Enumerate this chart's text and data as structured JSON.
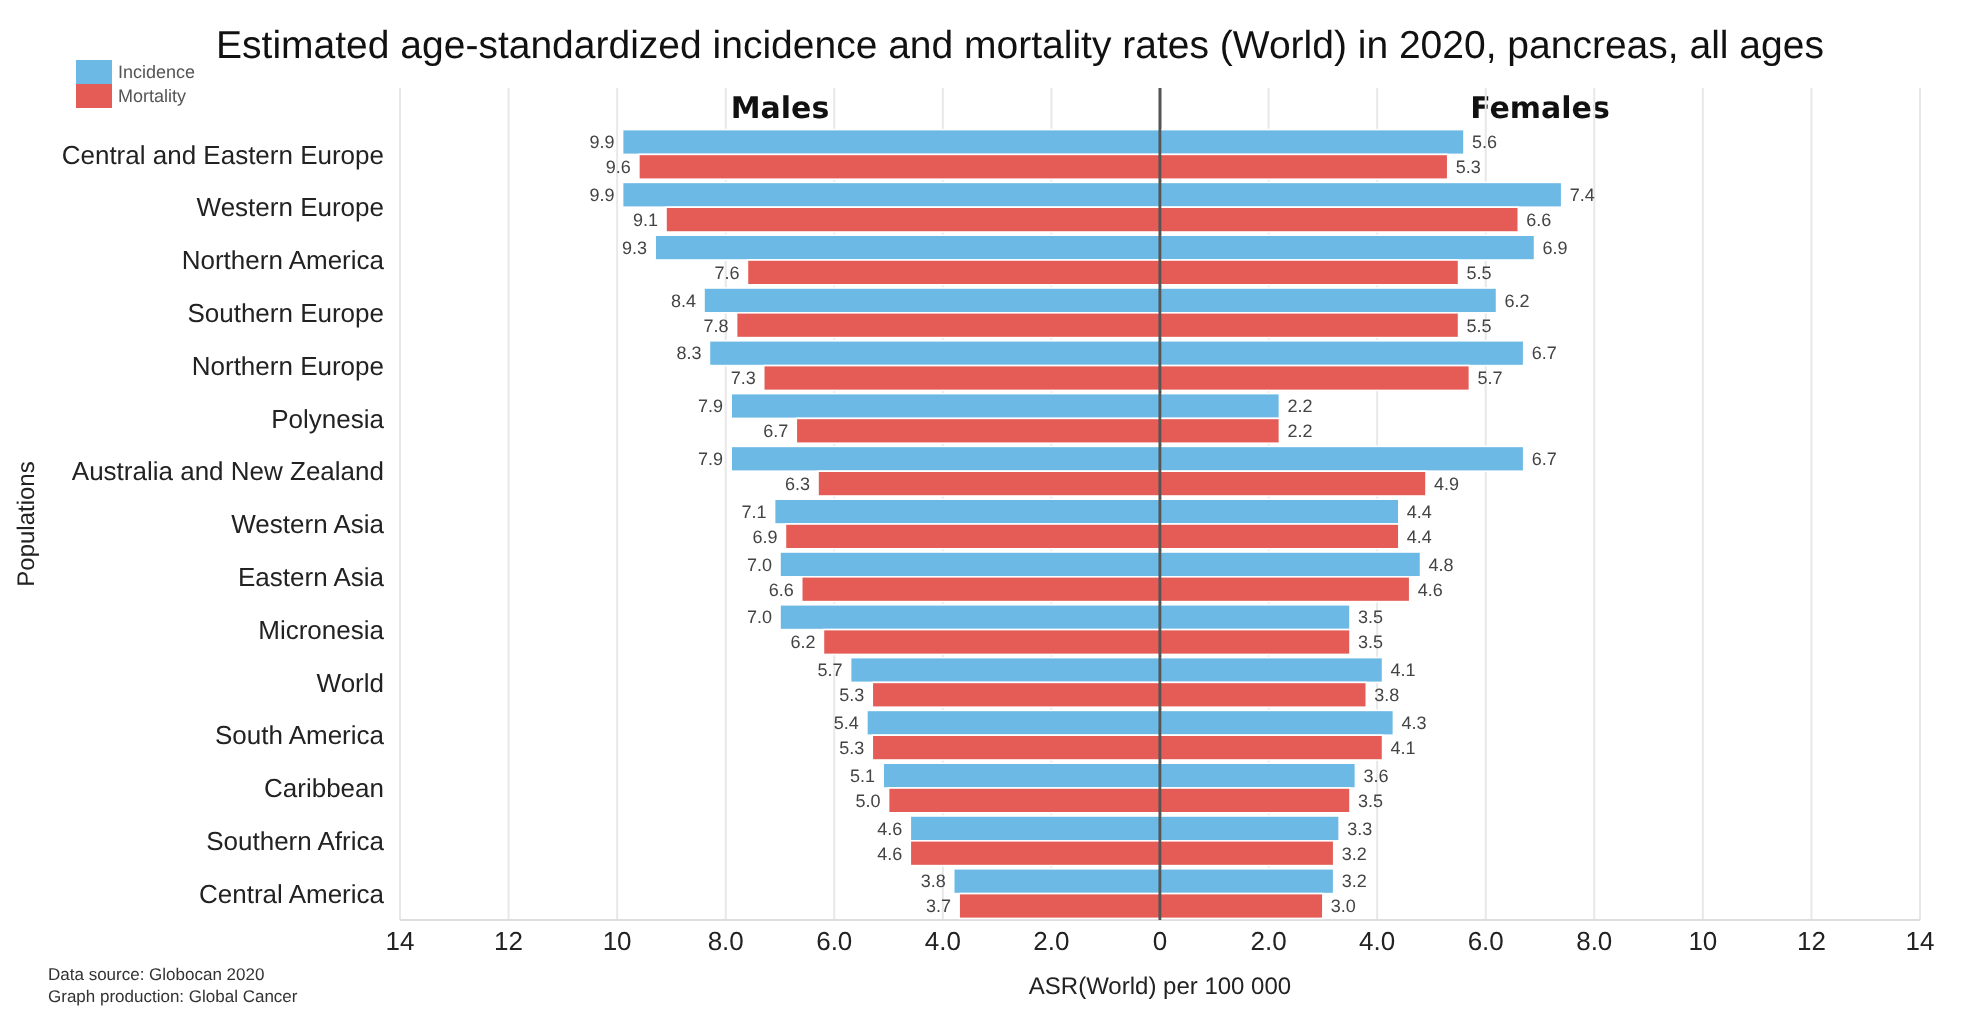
{
  "chart_data": [
    {
      "type": "bar",
      "title": "Estimated age-standardized incidence and mortality rates (World) in 2020, pancreas, all ages",
      "subtitle": "Males",
      "xlabel": "ASR(World) per 100 000",
      "ylabel": "Populations",
      "annotations": [
        "Data source: Globocan 2020",
        "Graph production: Global Cancer"
      ],
      "orientation": "horizontal",
      "categories": [
        "Central and Eastern Europe",
        "Western Europe",
        "Northern America",
        "Southern Europe",
        "Northern Europe",
        "Polynesia",
        "Australia and New Zealand",
        "Western Asia",
        "Eastern Asia",
        "Micronesia",
        "World",
        "South America",
        "Caribbean",
        "Southern Africa",
        "Central America"
      ],
      "series": [
        {
          "name": "Incidence",
          "color": "#6cb9e5",
          "values": [
            9.9,
            9.9,
            9.3,
            8.4,
            8.3,
            7.9,
            7.9,
            7.1,
            7.0,
            7.0,
            5.7,
            5.4,
            5.1,
            4.6,
            3.8
          ],
          "value_labels": [
            "9.9",
            "9.9",
            "9.3",
            "8.4",
            "8.3",
            "7.9",
            "7.9",
            "7.1",
            "7.0",
            "7.0",
            "5.7",
            "5.4",
            "5.1",
            "4.6",
            "3.8"
          ]
        },
        {
          "name": "Mortality",
          "color": "#e55b55",
          "values": [
            9.6,
            9.1,
            7.6,
            7.8,
            7.3,
            6.7,
            6.3,
            6.9,
            6.6,
            6.2,
            5.3,
            5.3,
            5.0,
            4.6,
            3.7
          ],
          "value_labels": [
            "9.6",
            "9.1",
            "7.6",
            "7.8",
            "7.3",
            "6.7",
            "6.3",
            "6.9",
            "6.6",
            "6.2",
            "5.3",
            "5.3",
            "5.0",
            "4.6",
            "3.7"
          ]
        }
      ],
      "xlim": [
        14,
        0
      ],
      "xticks": [
        14,
        12,
        10,
        {
          "value": 8,
          "label": "8.0"
        },
        {
          "value": 6,
          "label": "6.0"
        },
        {
          "value": 4,
          "label": "4.0"
        },
        {
          "value": 2,
          "label": "2.0"
        },
        0
      ],
      "grid": "x",
      "legend": "top left"
    },
    {
      "type": "bar",
      "title": "Females",
      "orientation": "horizontal",
      "categories": [
        null,
        null,
        null,
        null,
        null,
        null,
        null,
        null,
        null,
        null,
        null,
        null,
        null,
        null,
        null
      ],
      "series": [
        {
          "color": "#6cb9e5",
          "values": [
            5.6,
            7.4,
            6.9,
            6.2,
            6.7,
            2.2,
            6.7,
            4.4,
            4.8,
            3.5,
            4.1,
            4.3,
            3.6,
            3.3,
            3.2
          ],
          "value_labels": [
            "5.6",
            "7.4",
            "6.9",
            "6.2",
            "6.7",
            "2.2",
            "6.7",
            "4.4",
            "4.8",
            "3.5",
            "4.1",
            "4.3",
            "3.6",
            "3.3",
            "3.2"
          ]
        },
        {
          "color": "#e55b55",
          "values": [
            5.3,
            6.6,
            5.5,
            5.5,
            5.7,
            2.2,
            4.9,
            4.4,
            4.6,
            3.5,
            3.8,
            4.1,
            3.5,
            3.2,
            3.0
          ],
          "value_labels": [
            "5.3",
            "6.6",
            "5.5",
            "5.5",
            "5.7",
            "2.2",
            "4.9",
            "4.4",
            "4.6",
            "3.5",
            "3.8",
            "4.1",
            "3.5",
            "3.2",
            "3.0"
          ]
        }
      ],
      "xlim": [
        0,
        14
      ],
      "xticks": [
        {
          "value": 2,
          "label": "2.0"
        },
        {
          "value": 4,
          "label": "4.0"
        },
        {
          "value": 6,
          "label": "6.0"
        },
        {
          "value": 8,
          "label": "8.0"
        },
        10,
        12,
        14
      ],
      "grid": "x"
    }
  ]
}
